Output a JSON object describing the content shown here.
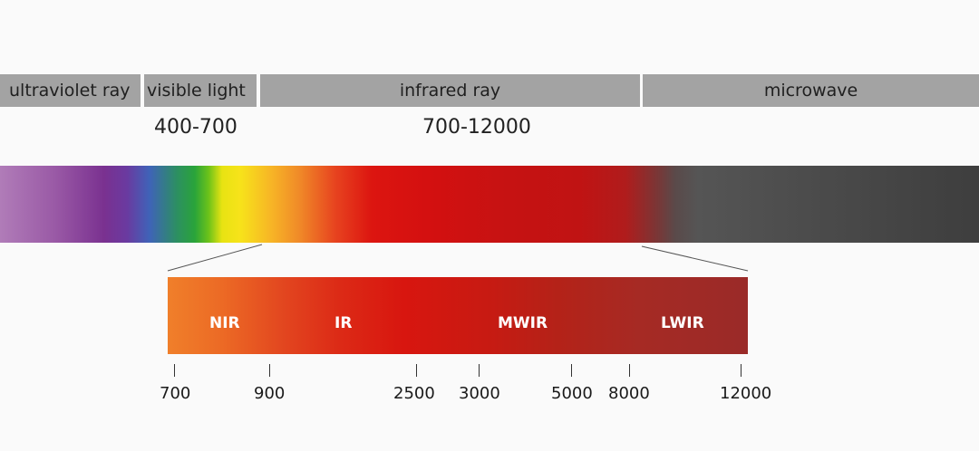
{
  "bands": [
    {
      "label": "ultraviolet ray"
    },
    {
      "label": "visible light"
    },
    {
      "label": "infrared ray"
    },
    {
      "label": "microwave"
    }
  ],
  "ranges": {
    "visible": "400-700",
    "infrared": "700-12000"
  },
  "infrared_subbands": [
    "NIR",
    "IR",
    "MWIR",
    "LWIR"
  ],
  "scale_ticks": [
    "700",
    "900",
    "2500",
    "3000",
    "5000",
    "8000",
    "12000"
  ],
  "colors": {
    "band_bar": "#a3a3a3",
    "background": "#fafafa"
  }
}
